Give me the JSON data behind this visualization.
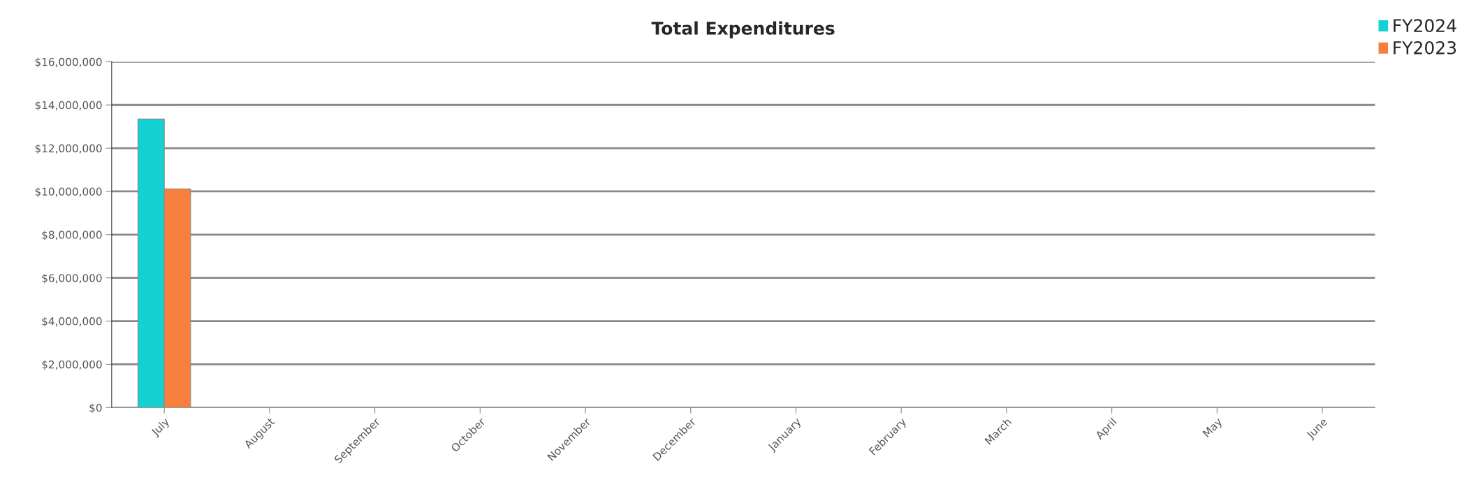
{
  "chart_data": {
    "type": "bar",
    "title": "Total Expenditures",
    "categories": [
      "July",
      "August",
      "September",
      "October",
      "November",
      "December",
      "January",
      "February",
      "March",
      "April",
      "May",
      "June"
    ],
    "series": [
      {
        "name": "FY2024",
        "color": "#14d2d2",
        "values": [
          13350000,
          null,
          null,
          null,
          null,
          null,
          null,
          null,
          null,
          null,
          null,
          null
        ]
      },
      {
        "name": "FY2023",
        "color": "#f7803e",
        "values": [
          10120000,
          null,
          null,
          null,
          null,
          null,
          null,
          null,
          null,
          null,
          null,
          null
        ]
      }
    ],
    "ylim": [
      0,
      16000000
    ],
    "yticks": [
      {
        "value": 0,
        "label": "$0"
      },
      {
        "value": 2000000,
        "label": "$2,000,000"
      },
      {
        "value": 4000000,
        "label": "$4,000,000"
      },
      {
        "value": 6000000,
        "label": "$6,000,000"
      },
      {
        "value": 8000000,
        "label": "$8,000,000"
      },
      {
        "value": 10000000,
        "label": "$10,000,000"
      },
      {
        "value": 12000000,
        "label": "$12,000,000"
      },
      {
        "value": 14000000,
        "label": "$14,000,000"
      },
      {
        "value": 16000000,
        "label": "$16,000,000"
      }
    ],
    "grid": "y",
    "legend": "top right"
  }
}
